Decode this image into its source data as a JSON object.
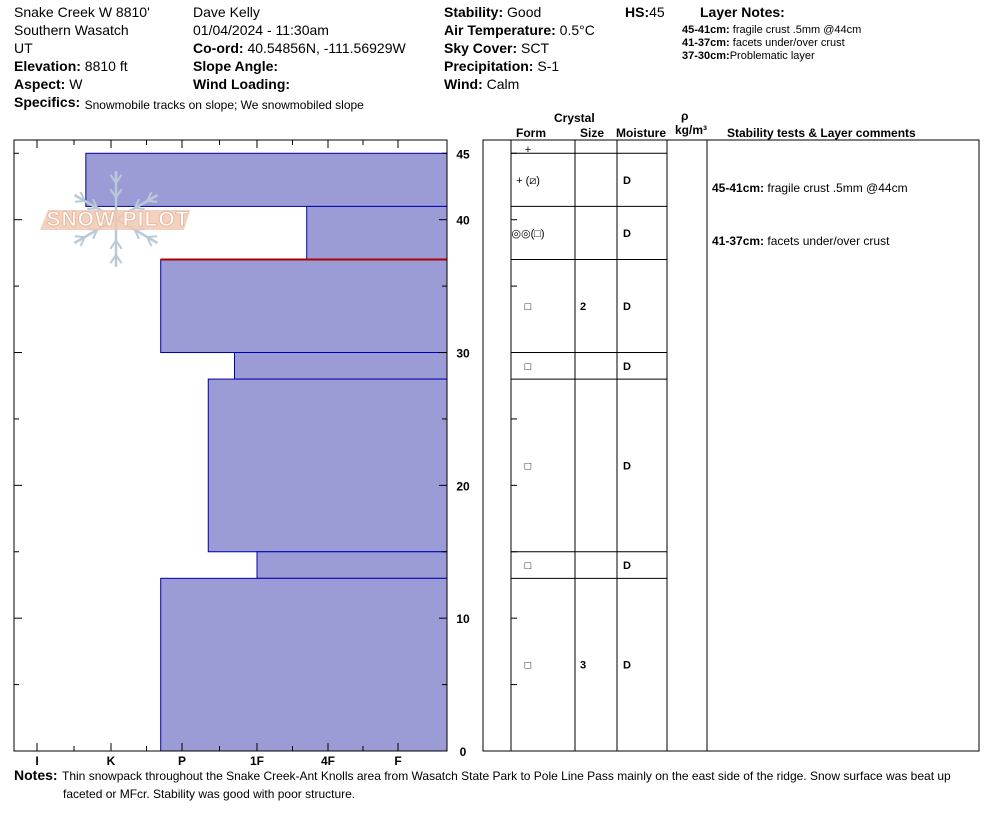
{
  "header": {
    "location": "Snake Creek W 8810'",
    "range": "Southern Wasatch",
    "state": "UT",
    "elevation_label": "Elevation:",
    "elevation": "8810 ft",
    "aspect_label": "Aspect:",
    "aspect": "W",
    "specifics_label": "Specifics:",
    "specifics": "Snowmobile tracks on slope; We snowmobiled slope",
    "observer": "Dave Kelly",
    "datetime": "01/04/2024 - 11:30am",
    "coord_label": "Co-ord:",
    "coord": "40.54856N, -111.56929W",
    "slope_label": "Slope Angle:",
    "slope": "",
    "wind_loading_label": "Wind Loading:",
    "wind_loading": "",
    "stability_label": "Stability:",
    "stability": "Good",
    "air_temp_label": "Air Temperature:",
    "air_temp": "0.5°C",
    "sky_label": "Sky Cover:",
    "sky": "SCT",
    "precip_label": "Precipitation:",
    "precip": "S-1",
    "wind_label": "Wind:",
    "wind": "Calm",
    "hs_label": "HS:",
    "hs": "45"
  },
  "layer_notes": {
    "title": "Layer Notes:",
    "items": [
      {
        "range": "45-41cm:",
        "text": "fragile crust .5mm @44cm"
      },
      {
        "range": "41-37cm:",
        "text": " facets under/over crust"
      },
      {
        "range": "37-30cm:",
        "text": "Problematic layer"
      }
    ]
  },
  "notes": {
    "label": "Notes:",
    "line1": "Thin snowpack throughout the Snake Creek-Ant Knolls area from Wasatch State Park to Pole Line Pass mainly on the east side of the ridge.  Snow surface was beat up",
    "line2": "faceted or MFcr. Stability was good with poor structure."
  },
  "logo": {
    "text": "SNOW PILOT"
  },
  "table_headers": {
    "crystal": "Crystal",
    "form": "Form",
    "size": "Size",
    "moisture": "Moisture",
    "rho": "ρ",
    "density_unit": "kg/m³",
    "comments": "Stability tests & Layer comments"
  },
  "chart_data": {
    "type": "snow-profile",
    "hardness_ticks": [
      "I",
      "K",
      "P",
      "1F",
      "4F",
      "F"
    ],
    "height_ticks": [
      "0",
      "10",
      "20",
      "30",
      "40",
      "45"
    ],
    "height_range": [
      0,
      46
    ],
    "layers": [
      {
        "top": 45,
        "bottom": 41,
        "hardness": 0.66,
        "form": "+",
        "size": "",
        "moisture": "D",
        "comment_range": "",
        "comment": ""
      },
      {
        "top": 41,
        "bottom": 37,
        "hardness": 3.7,
        "form": "+ (⧄)",
        "size": "",
        "moisture": "D",
        "comment_range": "45-41cm:",
        "comment": "fragile crust .5mm @44cm"
      },
      {
        "top": 37,
        "bottom": 30,
        "hardness": 1.7,
        "form": "◎◎(□)",
        "size": "",
        "moisture": "D",
        "comment_range": "41-37cm:",
        "comment": " facets under/over crust"
      },
      {
        "top": 30,
        "bottom": 28,
        "hardness": 2.7,
        "form": "□",
        "size": "2",
        "moisture": "D",
        "comment_range": "",
        "comment": ""
      },
      {
        "top": 28,
        "bottom": 15,
        "hardness": 2.35,
        "form": "□",
        "size": "",
        "moisture": "D",
        "comment_range": "",
        "comment": ""
      },
      {
        "top": 15,
        "bottom": 13,
        "hardness": 3.0,
        "form": "□",
        "size": "",
        "moisture": "D",
        "comment_range": "",
        "comment": ""
      },
      {
        "top": 13,
        "bottom": 0,
        "hardness": 1.7,
        "form": "□",
        "size": "3",
        "moisture": "D",
        "comment_range": "",
        "comment": ""
      }
    ],
    "rows_form": [
      "+",
      "+ (⧄)",
      "◎◎(□)",
      "□",
      "□",
      "□",
      "□",
      "□"
    ],
    "rows_size": [
      "",
      "",
      "",
      "2",
      "",
      "",
      "",
      "3"
    ],
    "rows_moisture": [
      "",
      "D",
      "D",
      "D",
      "D",
      "D",
      "D",
      "D"
    ],
    "colors": {
      "fill": "#9b9bd6",
      "stroke": "#0000aa",
      "problem_line": "#aa0000",
      "logo": "#f0c9b4",
      "logo_flake": "#b9c9d6"
    }
  }
}
